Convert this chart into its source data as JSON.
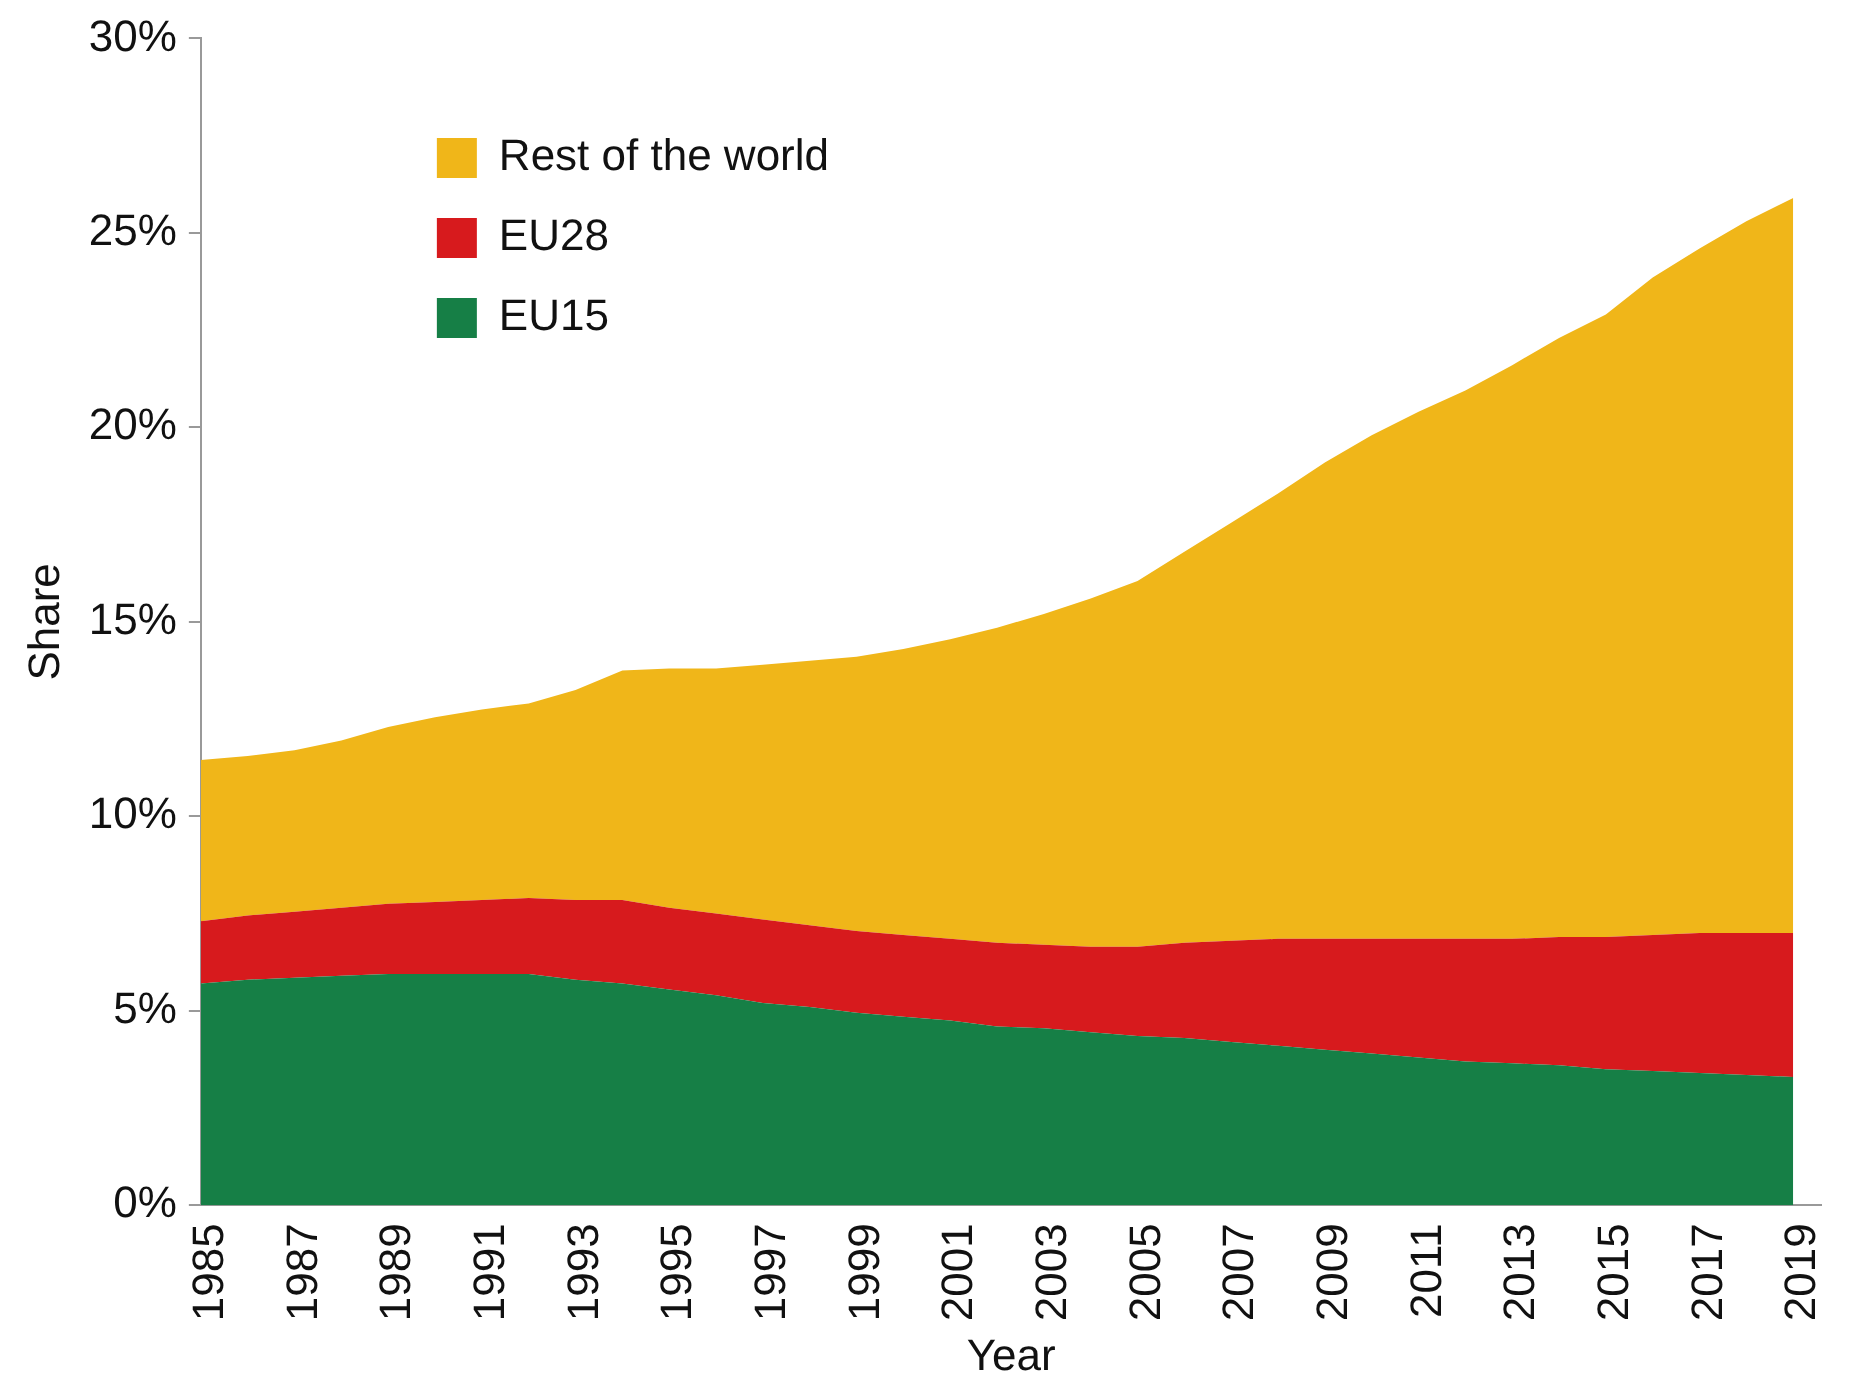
{
  "chart_data": {
    "type": "area",
    "stacked": true,
    "xlabel": "Year",
    "ylabel": "Share",
    "x": [
      1985,
      1986,
      1987,
      1988,
      1989,
      1990,
      1991,
      1992,
      1993,
      1994,
      1995,
      1996,
      1997,
      1998,
      1999,
      2000,
      2001,
      2002,
      2003,
      2004,
      2005,
      2006,
      2007,
      2008,
      2009,
      2010,
      2011,
      2012,
      2013,
      2014,
      2015,
      2016,
      2017,
      2018,
      2019
    ],
    "series": [
      {
        "name": "EU15",
        "color": "#167f46",
        "values": [
          5.7,
          5.8,
          5.85,
          5.9,
          5.95,
          5.95,
          5.95,
          5.95,
          5.8,
          5.7,
          5.55,
          5.4,
          5.2,
          5.1,
          4.95,
          4.85,
          4.75,
          4.6,
          4.55,
          4.45,
          4.35,
          4.3,
          4.2,
          4.1,
          4.0,
          3.9,
          3.8,
          3.7,
          3.65,
          3.6,
          3.5,
          3.45,
          3.4,
          3.35,
          3.3
        ]
      },
      {
        "name": "EU28",
        "color": "#d71a1d",
        "values": [
          1.6,
          1.65,
          1.7,
          1.75,
          1.8,
          1.85,
          1.9,
          1.95,
          2.05,
          2.15,
          2.1,
          2.1,
          2.15,
          2.1,
          2.1,
          2.1,
          2.1,
          2.15,
          2.15,
          2.2,
          2.3,
          2.45,
          2.6,
          2.75,
          2.85,
          2.95,
          3.05,
          3.15,
          3.2,
          3.3,
          3.4,
          3.5,
          3.6,
          3.65,
          3.7
        ]
      },
      {
        "name": "Rest of the world",
        "color": "#f0b619",
        "values": [
          4.15,
          4.1,
          4.15,
          4.3,
          4.55,
          4.75,
          4.9,
          5.0,
          5.4,
          5.9,
          6.15,
          6.3,
          6.55,
          6.8,
          7.05,
          7.35,
          7.7,
          8.1,
          8.5,
          8.95,
          9.4,
          10.05,
          10.75,
          11.45,
          12.25,
          12.95,
          13.55,
          14.1,
          14.75,
          15.4,
          16.0,
          16.9,
          17.6,
          18.3,
          18.9
        ]
      }
    ],
    "xlim": [
      1985,
      2019.6
    ],
    "xticks": [
      1985,
      1987,
      1989,
      1991,
      1993,
      1995,
      1997,
      1999,
      2001,
      2003,
      2005,
      2007,
      2009,
      2011,
      2013,
      2015,
      2017,
      2019
    ],
    "ylim": [
      0,
      30
    ],
    "yticks": [
      {
        "value": 0,
        "label": "0%"
      },
      {
        "value": 5,
        "label": "5%"
      },
      {
        "value": 10,
        "label": "10%"
      },
      {
        "value": 15,
        "label": "15%"
      },
      {
        "value": 20,
        "label": "20%"
      },
      {
        "value": 25,
        "label": "25%"
      },
      {
        "value": 30,
        "label": "30%"
      }
    ],
    "legend": "top left"
  }
}
